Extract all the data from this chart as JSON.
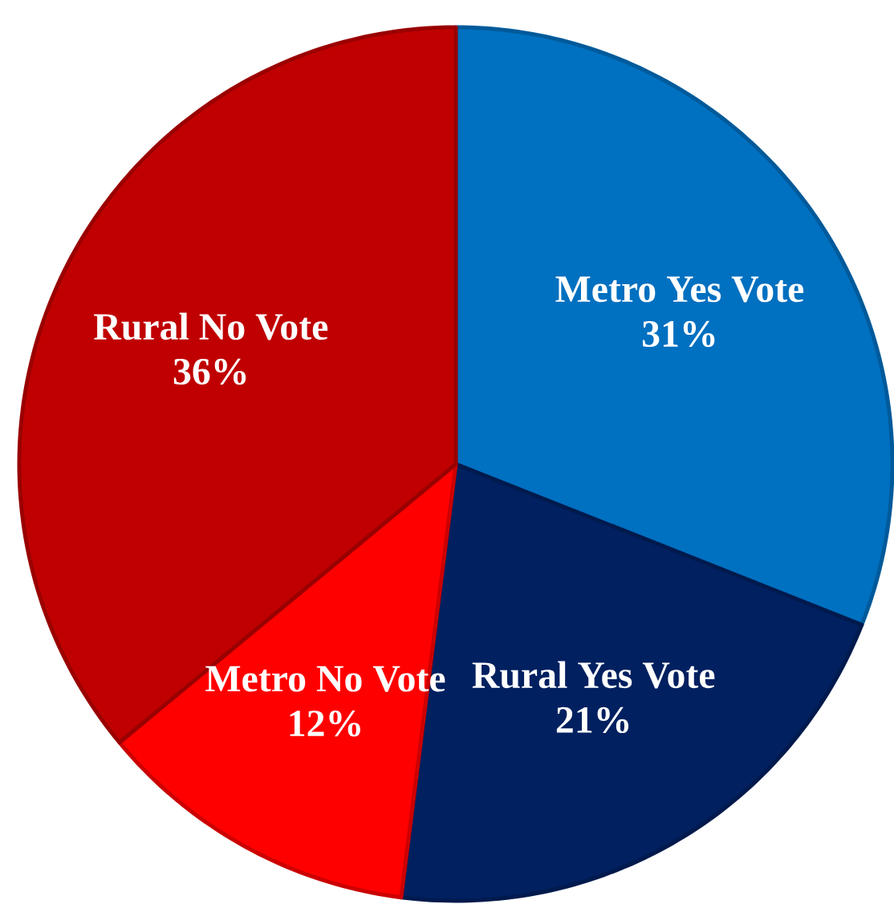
{
  "chart_data": {
    "type": "pie",
    "categories": [
      "Metro Yes Vote",
      "Rural Yes Vote",
      "Metro No Vote",
      "Rural No Vote"
    ],
    "values": [
      31,
      21,
      12,
      36
    ],
    "value_labels": [
      "31%",
      "21%",
      "12%",
      "36%"
    ],
    "colors": [
      "#0070c0",
      "#002060",
      "#ff0000",
      "#c00000"
    ]
  }
}
